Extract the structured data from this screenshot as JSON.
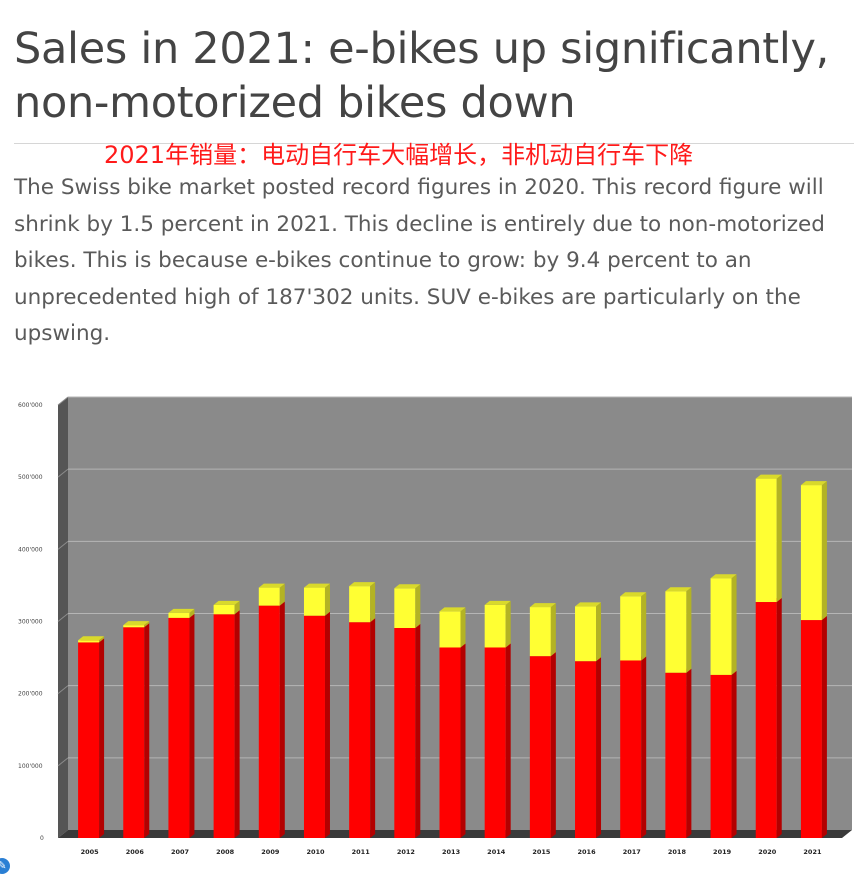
{
  "header": {
    "title": "Sales in 2021: e-bikes up significantly, non-motorized bikes down",
    "cn_caption": "2021年销量：电动自行车大幅增长，非机动自行车下降"
  },
  "intro": {
    "text": "The Swiss bike market posted record figures in 2020. This record figure will shrink by 1.5 percent in 2021. This decline is entirely due to non-motorized bikes. This is because e-bikes continue to grow: by 9.4 percent to an unprecedented high of 187'302 units. SUV e-bikes are particularly on the upswing."
  },
  "colors": {
    "non_motorized": "#ff0000",
    "ebike": "#ffff33",
    "plot_bg": "#8a8a8a",
    "wall": "#555555",
    "floor": "#3a3a3a"
  },
  "chart_data": {
    "type": "bar",
    "stacked": true,
    "title": "",
    "xlabel": "",
    "ylabel": "",
    "categories": [
      "2005",
      "2006",
      "2007",
      "2008",
      "2009",
      "2010",
      "2011",
      "2012",
      "2013",
      "2014",
      "2015",
      "2016",
      "2017",
      "2018",
      "2019",
      "2020",
      "2021"
    ],
    "series": [
      {
        "color": "#ff0000",
        "values": [
          271000,
          292000,
          305000,
          310000,
          322000,
          308000,
          299000,
          291000,
          264000,
          264000,
          252000,
          245000,
          246000,
          229000,
          226000,
          327000,
          302000
        ]
      },
      {
        "color": "#ffff33",
        "values": [
          3000,
          3000,
          7000,
          13000,
          25000,
          39000,
          50000,
          55000,
          50000,
          59000,
          68000,
          76000,
          89000,
          113000,
          134000,
          171000,
          187000
        ]
      }
    ],
    "ylim": [
      0,
      600000
    ],
    "yticks": [
      0,
      100000,
      200000,
      300000,
      400000,
      500000,
      600000
    ],
    "ytick_labels": [
      "0",
      "100'000",
      "200'000",
      "300'000",
      "400'000",
      "500'000",
      "600'000"
    ],
    "grid": true,
    "style": "3d"
  }
}
